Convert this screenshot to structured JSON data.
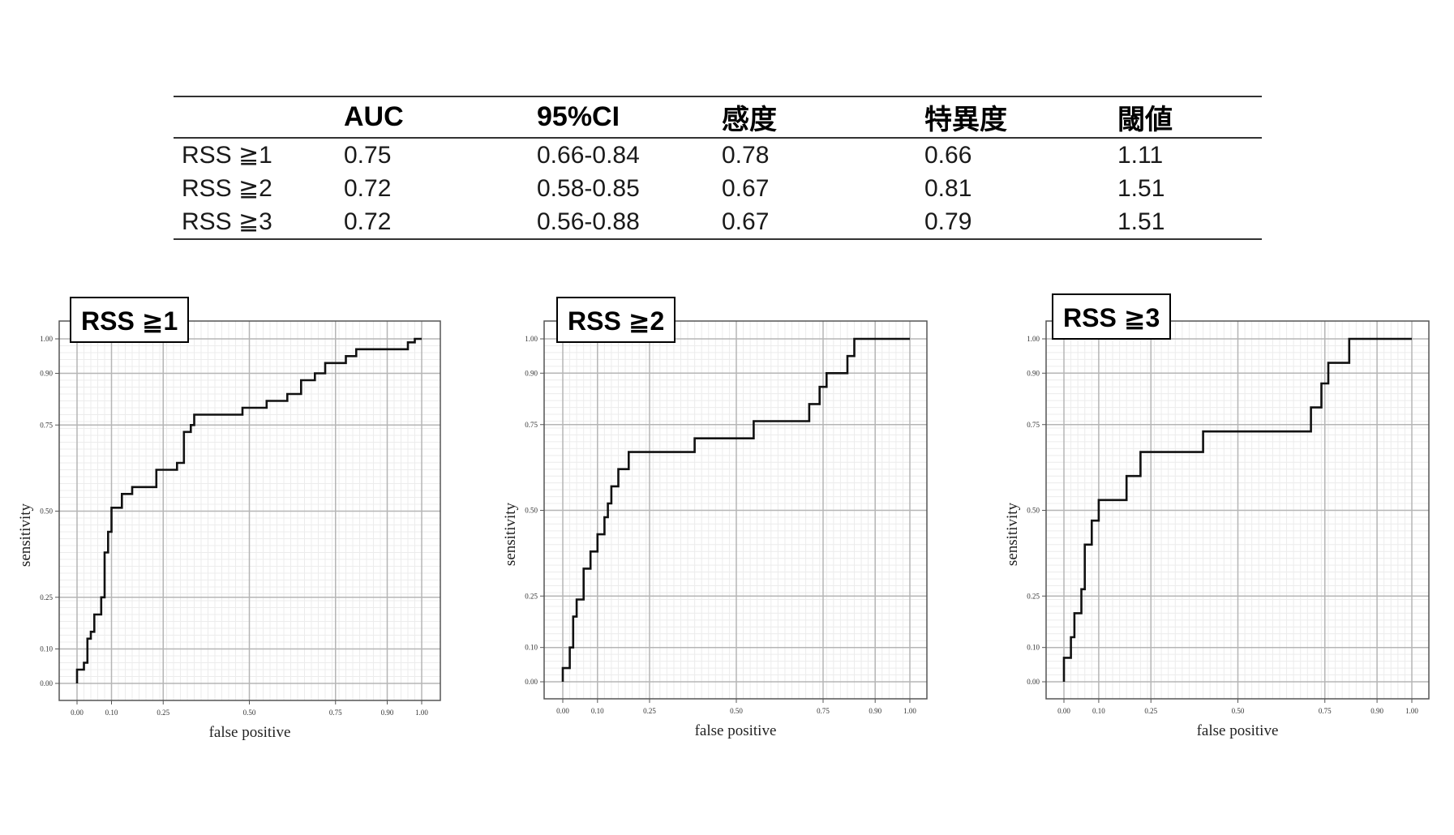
{
  "table": {
    "headers": [
      "",
      "AUC",
      "95%CI",
      "感度",
      "特異度",
      "閾値"
    ],
    "rows": [
      [
        "RSS ≧1",
        "0.75",
        "0.66-0.84",
        "0.78",
        "0.66",
        "1.11"
      ],
      [
        "RSS ≧2",
        "0.72",
        "0.58-0.85",
        "0.67",
        "0.81",
        "1.51"
      ],
      [
        "RSS ≧3",
        "0.72",
        "0.56-0.88",
        "0.67",
        "0.79",
        "1.51"
      ]
    ]
  },
  "chart_data": [
    {
      "type": "line",
      "title": "RSS ≧1",
      "xlabel": "false positive",
      "ylabel": "sensitivity",
      "xlim": [
        0,
        1
      ],
      "ylim": [
        0,
        1
      ],
      "x_ticks": [
        "0.00",
        "0.10",
        "0.25",
        "0.50",
        "0.75",
        "0.90",
        "1.00"
      ],
      "y_ticks": [
        "0.00",
        "0.10",
        "0.25",
        "0.50",
        "0.75",
        "0.90",
        "1.00"
      ],
      "grid": true,
      "points": [
        [
          0,
          0
        ],
        [
          0,
          0.04
        ],
        [
          0.02,
          0.04
        ],
        [
          0.02,
          0.06
        ],
        [
          0.03,
          0.06
        ],
        [
          0.03,
          0.13
        ],
        [
          0.04,
          0.13
        ],
        [
          0.04,
          0.15
        ],
        [
          0.05,
          0.15
        ],
        [
          0.05,
          0.2
        ],
        [
          0.07,
          0.2
        ],
        [
          0.07,
          0.25
        ],
        [
          0.08,
          0.25
        ],
        [
          0.08,
          0.38
        ],
        [
          0.09,
          0.38
        ],
        [
          0.09,
          0.44
        ],
        [
          0.1,
          0.44
        ],
        [
          0.1,
          0.51
        ],
        [
          0.13,
          0.51
        ],
        [
          0.13,
          0.55
        ],
        [
          0.16,
          0.55
        ],
        [
          0.16,
          0.57
        ],
        [
          0.23,
          0.57
        ],
        [
          0.23,
          0.62
        ],
        [
          0.29,
          0.62
        ],
        [
          0.29,
          0.64
        ],
        [
          0.31,
          0.64
        ],
        [
          0.31,
          0.73
        ],
        [
          0.33,
          0.73
        ],
        [
          0.33,
          0.75
        ],
        [
          0.34,
          0.75
        ],
        [
          0.34,
          0.78
        ],
        [
          0.48,
          0.78
        ],
        [
          0.48,
          0.8
        ],
        [
          0.55,
          0.8
        ],
        [
          0.55,
          0.82
        ],
        [
          0.61,
          0.82
        ],
        [
          0.61,
          0.84
        ],
        [
          0.65,
          0.84
        ],
        [
          0.65,
          0.88
        ],
        [
          0.69,
          0.88
        ],
        [
          0.69,
          0.9
        ],
        [
          0.72,
          0.9
        ],
        [
          0.72,
          0.93
        ],
        [
          0.78,
          0.93
        ],
        [
          0.78,
          0.95
        ],
        [
          0.81,
          0.95
        ],
        [
          0.81,
          0.97
        ],
        [
          0.96,
          0.97
        ],
        [
          0.96,
          0.99
        ],
        [
          0.98,
          0.99
        ],
        [
          0.98,
          1
        ],
        [
          1,
          1
        ]
      ]
    },
    {
      "type": "line",
      "title": "RSS ≧2",
      "xlabel": "false positive",
      "ylabel": "sensitivity",
      "xlim": [
        0,
        1
      ],
      "ylim": [
        0,
        1
      ],
      "x_ticks": [
        "0.00",
        "0.10",
        "0.25",
        "0.50",
        "0.75",
        "0.90",
        "1.00"
      ],
      "y_ticks": [
        "0.00",
        "0.10",
        "0.25",
        "0.50",
        "0.75",
        "0.90",
        "1.00"
      ],
      "grid": true,
      "points": [
        [
          0,
          0
        ],
        [
          0,
          0.04
        ],
        [
          0.02,
          0.04
        ],
        [
          0.02,
          0.1
        ],
        [
          0.03,
          0.1
        ],
        [
          0.03,
          0.19
        ],
        [
          0.04,
          0.19
        ],
        [
          0.04,
          0.24
        ],
        [
          0.06,
          0.24
        ],
        [
          0.06,
          0.33
        ],
        [
          0.08,
          0.33
        ],
        [
          0.08,
          0.38
        ],
        [
          0.1,
          0.38
        ],
        [
          0.1,
          0.43
        ],
        [
          0.12,
          0.43
        ],
        [
          0.12,
          0.48
        ],
        [
          0.13,
          0.48
        ],
        [
          0.13,
          0.52
        ],
        [
          0.14,
          0.52
        ],
        [
          0.14,
          0.57
        ],
        [
          0.16,
          0.57
        ],
        [
          0.16,
          0.62
        ],
        [
          0.19,
          0.62
        ],
        [
          0.19,
          0.67
        ],
        [
          0.38,
          0.67
        ],
        [
          0.38,
          0.71
        ],
        [
          0.55,
          0.71
        ],
        [
          0.55,
          0.76
        ],
        [
          0.71,
          0.76
        ],
        [
          0.71,
          0.81
        ],
        [
          0.74,
          0.81
        ],
        [
          0.74,
          0.86
        ],
        [
          0.76,
          0.86
        ],
        [
          0.76,
          0.9
        ],
        [
          0.82,
          0.9
        ],
        [
          0.82,
          0.95
        ],
        [
          0.84,
          0.95
        ],
        [
          0.84,
          1
        ],
        [
          1,
          1
        ]
      ]
    },
    {
      "type": "line",
      "title": "RSS ≧3",
      "xlabel": "false positive",
      "ylabel": "sensitivity",
      "xlim": [
        0,
        1
      ],
      "ylim": [
        0,
        1
      ],
      "x_ticks": [
        "0.00",
        "0.10",
        "0.25",
        "0.50",
        "0.75",
        "0.90",
        "1.00"
      ],
      "y_ticks": [
        "0.00",
        "0.10",
        "0.25",
        "0.50",
        "0.75",
        "0.90",
        "1.00"
      ],
      "grid": true,
      "points": [
        [
          0,
          0
        ],
        [
          0,
          0.07
        ],
        [
          0.02,
          0.07
        ],
        [
          0.02,
          0.13
        ],
        [
          0.03,
          0.13
        ],
        [
          0.03,
          0.2
        ],
        [
          0.05,
          0.2
        ],
        [
          0.05,
          0.27
        ],
        [
          0.06,
          0.27
        ],
        [
          0.06,
          0.4
        ],
        [
          0.08,
          0.4
        ],
        [
          0.08,
          0.47
        ],
        [
          0.1,
          0.47
        ],
        [
          0.1,
          0.53
        ],
        [
          0.18,
          0.53
        ],
        [
          0.18,
          0.6
        ],
        [
          0.22,
          0.6
        ],
        [
          0.22,
          0.67
        ],
        [
          0.4,
          0.67
        ],
        [
          0.4,
          0.73
        ],
        [
          0.71,
          0.73
        ],
        [
          0.71,
          0.8
        ],
        [
          0.74,
          0.8
        ],
        [
          0.74,
          0.87
        ],
        [
          0.76,
          0.87
        ],
        [
          0.76,
          0.93
        ],
        [
          0.82,
          0.93
        ],
        [
          0.82,
          1
        ],
        [
          1,
          1
        ]
      ]
    }
  ]
}
